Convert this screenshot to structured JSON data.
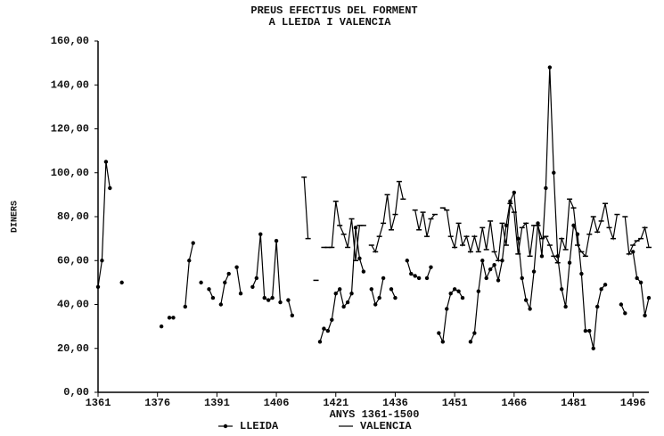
{
  "chart_data": {
    "type": "line",
    "title": "PREUS EFECTIUS DEL FORMENT",
    "subtitle": "A LLEIDA I VALENCIA",
    "x_label": "ANYS 1361-1500",
    "y_label": "DINERS",
    "x": [
      1361,
      1362,
      1363,
      1364,
      1365,
      1366,
      1367,
      1368,
      1369,
      1370,
      1371,
      1372,
      1373,
      1374,
      1375,
      1376,
      1377,
      1378,
      1379,
      1380,
      1381,
      1382,
      1383,
      1384,
      1385,
      1386,
      1387,
      1388,
      1389,
      1390,
      1391,
      1392,
      1393,
      1394,
      1395,
      1396,
      1397,
      1398,
      1399,
      1400,
      1401,
      1402,
      1403,
      1404,
      1405,
      1406,
      1407,
      1408,
      1409,
      1410,
      1411,
      1412,
      1413,
      1414,
      1415,
      1416,
      1417,
      1418,
      1419,
      1420,
      1421,
      1422,
      1423,
      1424,
      1425,
      1426,
      1427,
      1428,
      1429,
      1430,
      1431,
      1432,
      1433,
      1434,
      1435,
      1436,
      1437,
      1438,
      1439,
      1440,
      1441,
      1442,
      1443,
      1444,
      1445,
      1446,
      1447,
      1448,
      1449,
      1450,
      1451,
      1452,
      1453,
      1454,
      1455,
      1456,
      1457,
      1458,
      1459,
      1460,
      1461,
      1462,
      1463,
      1464,
      1465,
      1466,
      1467,
      1468,
      1469,
      1470,
      1471,
      1472,
      1473,
      1474,
      1475,
      1476,
      1477,
      1478,
      1479,
      1480,
      1481,
      1482,
      1483,
      1484,
      1485,
      1486,
      1487,
      1488,
      1489,
      1490,
      1491,
      1492,
      1493,
      1494,
      1495,
      1496,
      1497,
      1498,
      1499,
      1500
    ],
    "series": [
      {
        "name": "LLEIDA",
        "color": "#000000",
        "marker": "dot",
        "values": [
          48,
          60,
          105,
          93,
          null,
          null,
          50,
          null,
          null,
          null,
          null,
          null,
          null,
          null,
          null,
          null,
          30,
          null,
          34,
          34,
          null,
          null,
          39,
          60,
          68,
          null,
          50,
          null,
          47,
          43,
          null,
          40,
          50,
          54,
          null,
          57,
          45,
          null,
          null,
          48,
          52,
          72,
          43,
          42,
          43,
          69,
          41,
          null,
          42,
          35,
          null,
          null,
          null,
          null,
          null,
          null,
          23,
          29,
          28,
          33,
          45,
          47,
          39,
          41,
          45,
          75,
          61,
          55,
          null,
          47,
          40,
          43,
          52,
          null,
          47,
          43,
          null,
          null,
          60,
          54,
          53,
          52,
          null,
          52,
          57,
          null,
          27,
          23,
          38,
          45,
          47,
          46,
          43,
          null,
          23,
          27,
          46,
          60,
          52,
          56,
          58,
          51,
          60,
          76,
          87,
          91,
          70,
          52,
          42,
          38,
          55,
          77,
          62,
          93,
          148,
          100,
          62,
          47,
          39,
          59,
          76,
          72,
          54,
          28,
          28,
          20,
          39,
          47,
          49,
          null,
          null,
          null,
          40,
          36,
          null,
          64,
          52,
          50,
          35,
          43
        ]
      },
      {
        "name": "VALENCIA",
        "color": "#000000",
        "marker": "tick",
        "values": [
          null,
          null,
          null,
          null,
          null,
          null,
          null,
          null,
          null,
          null,
          null,
          null,
          null,
          null,
          null,
          null,
          null,
          null,
          null,
          null,
          null,
          null,
          null,
          null,
          null,
          null,
          null,
          null,
          null,
          null,
          null,
          null,
          null,
          null,
          null,
          null,
          null,
          null,
          null,
          null,
          null,
          null,
          null,
          null,
          null,
          null,
          null,
          null,
          null,
          null,
          null,
          null,
          98,
          70,
          null,
          51,
          null,
          66,
          66,
          66,
          87,
          76,
          72,
          66,
          79,
          60,
          76,
          76,
          null,
          67,
          64,
          71,
          77,
          90,
          74,
          81,
          96,
          88,
          null,
          null,
          83,
          74,
          82,
          71,
          79,
          81,
          null,
          84,
          83,
          71,
          66,
          77,
          67,
          71,
          64,
          71,
          64,
          75,
          65,
          78,
          64,
          60,
          77,
          67,
          86,
          82,
          63,
          75,
          77,
          62,
          76,
          76,
          70,
          71,
          67,
          62,
          59,
          70,
          65,
          88,
          84,
          67,
          64,
          62,
          72,
          80,
          73,
          78,
          86,
          75,
          70,
          81,
          null,
          80,
          63,
          67,
          69,
          70,
          75,
          66
        ]
      }
    ],
    "xlim": [
      1361,
      1500
    ],
    "xticks": [
      1361,
      1376,
      1391,
      1406,
      1421,
      1436,
      1451,
      1466,
      1481,
      1496
    ],
    "ylim": [
      0,
      160
    ],
    "yticks": [
      {
        "value": 0,
        "label": "0,00"
      },
      {
        "value": 20,
        "label": "20,00"
      },
      {
        "value": 40,
        "label": "40,00"
      },
      {
        "value": 60,
        "label": "60,00"
      },
      {
        "value": 80,
        "label": "80,00"
      },
      {
        "value": 100,
        "label": "100,00"
      },
      {
        "value": 120,
        "label": "120,00"
      },
      {
        "value": 140,
        "label": "140,00"
      },
      {
        "value": 160,
        "label": "160,00"
      }
    ],
    "grid": false,
    "legend": "bottom"
  }
}
